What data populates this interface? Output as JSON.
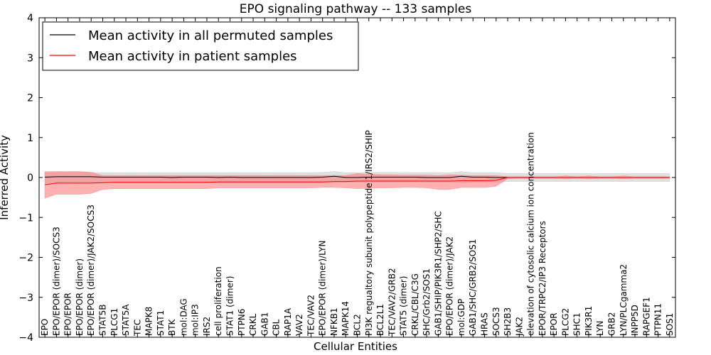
{
  "chart_data": {
    "type": "line",
    "title": "EPO signaling pathway -- 133 samples",
    "xlabel": "Cellular Entities",
    "ylabel": "Inferred Activity",
    "ylim": [
      -4,
      4
    ],
    "yticks": [
      -4,
      -3,
      -2,
      -1,
      0,
      1,
      2,
      3,
      4
    ],
    "ytick_labels": [
      "−4",
      "−3",
      "−2",
      "−1",
      "0",
      "1",
      "2",
      "3",
      "4"
    ],
    "grid": false,
    "legend_position": "top-left",
    "categories": [
      "EPO",
      "EPO/EPOR (dimer)/SOCS3",
      "EPO/EPOR",
      "EPO/EPOR (dimer)",
      "EPO/EPOR (dimer)/JAK2/SOCS3",
      "STAT5B",
      "PLCG1",
      "STAT5A",
      "TEC",
      "MAPK8",
      "STAT1",
      "BTK",
      "mol:DAG",
      "mol:IP3",
      "IRS2",
      "cell proliferation",
      "STAT1 (dimer)",
      "PTPN6",
      "CRKL",
      "GAB1",
      "CBL",
      "RAP1A",
      "VAV2",
      "TEC/VAV2",
      "EPO/EPOR (dimer)/LYN",
      "NFKB1",
      "MAPK14",
      "BCL2",
      "PI3K regualtory subunit polypeptide 1/IRS2/SHIP",
      "BCL2L1",
      "TEC/VAV2/GRB2",
      "STAT5 (dimer)",
      "CRKL/CBL/C3G",
      "SHC/Grb2/SOS1",
      "GAB1/SHIP/PIK3R1/SHP2/SHC",
      "EPO/EPOR (dimer)/JAK2",
      "mol:GDP",
      "GAB1/SHC/GRB2/SOS1",
      "HRAS",
      "SOCS3",
      "SH2B3",
      "JAK2",
      "elevation of cytosolic calcium ion concentration",
      "EPOR/TRPC2/IP3 Receptors",
      "EPOR",
      "PLCG2",
      "SHC1",
      "PIK3R1",
      "LYN",
      "GRB2",
      "LYN/PLCgamma2",
      "INPP5D",
      "RAPGEF1",
      "PTPN11",
      "SOS1"
    ],
    "series": [
      {
        "name": "Mean activity in all permuted samples",
        "color": "#000000",
        "values": [
          0.01,
          0.02,
          0.02,
          0.02,
          0.02,
          0.01,
          0.01,
          0.01,
          0.01,
          0.01,
          0.01,
          0.0,
          0.01,
          0.01,
          0.01,
          0.0,
          0.01,
          0.0,
          0.0,
          0.0,
          0.0,
          0.0,
          0.0,
          0.0,
          0.01,
          0.03,
          0.0,
          0.0,
          0.01,
          0.01,
          0.01,
          0.01,
          0.01,
          0.0,
          0.0,
          0.0,
          0.03,
          0.01,
          0.01,
          0.0,
          0.0,
          0.0,
          0.0,
          0.0,
          0.0,
          0.0,
          0.0,
          0.0,
          0.0,
          0.0,
          0.0,
          0.0,
          0.0,
          0.0,
          0.0
        ],
        "band_lower": [
          -0.13,
          -0.13,
          -0.12,
          -0.12,
          -0.12,
          -0.12,
          -0.12,
          -0.12,
          -0.12,
          -0.12,
          -0.12,
          -0.12,
          -0.12,
          -0.12,
          -0.12,
          -0.12,
          -0.12,
          -0.12,
          -0.12,
          -0.12,
          -0.12,
          -0.12,
          -0.12,
          -0.12,
          -0.12,
          -0.13,
          -0.12,
          -0.12,
          -0.12,
          -0.12,
          -0.12,
          -0.12,
          -0.12,
          -0.12,
          -0.12,
          -0.12,
          -0.13,
          -0.12,
          -0.12,
          -0.12,
          -0.1,
          -0.1,
          -0.1,
          -0.1,
          -0.1,
          -0.1,
          -0.1,
          -0.1,
          -0.1,
          -0.1,
          -0.1,
          -0.1,
          -0.1,
          -0.1,
          -0.1
        ],
        "band_upper": [
          0.12,
          0.13,
          0.13,
          0.13,
          0.13,
          0.12,
          0.12,
          0.12,
          0.12,
          0.12,
          0.12,
          0.12,
          0.12,
          0.12,
          0.12,
          0.12,
          0.12,
          0.12,
          0.12,
          0.12,
          0.12,
          0.12,
          0.12,
          0.12,
          0.13,
          0.15,
          0.12,
          0.12,
          0.13,
          0.13,
          0.13,
          0.12,
          0.12,
          0.12,
          0.12,
          0.12,
          0.15,
          0.12,
          0.12,
          0.12,
          0.1,
          0.1,
          0.1,
          0.1,
          0.1,
          0.1,
          0.1,
          0.1,
          0.1,
          0.1,
          0.1,
          0.1,
          0.1,
          0.1,
          0.1
        ],
        "band_color": "#bbbbbb"
      },
      {
        "name": "Mean activity in patient samples",
        "color": "#ff0000",
        "values": [
          -0.18,
          -0.14,
          -0.14,
          -0.14,
          -0.14,
          -0.13,
          -0.12,
          -0.12,
          -0.12,
          -0.12,
          -0.12,
          -0.12,
          -0.12,
          -0.12,
          -0.12,
          -0.11,
          -0.11,
          -0.11,
          -0.11,
          -0.11,
          -0.11,
          -0.11,
          -0.11,
          -0.11,
          -0.11,
          -0.1,
          -0.1,
          -0.09,
          -0.09,
          -0.09,
          -0.09,
          -0.09,
          -0.09,
          -0.09,
          -0.09,
          -0.09,
          -0.08,
          -0.08,
          -0.08,
          -0.07,
          0.0,
          0.0,
          0.0,
          0.0,
          0.0,
          0.0,
          0.0,
          0.0,
          0.0,
          0.0,
          0.0,
          0.0,
          0.0,
          0.0,
          0.0
        ],
        "band_lower": [
          -0.52,
          -0.42,
          -0.42,
          -0.42,
          -0.4,
          -0.3,
          -0.28,
          -0.28,
          -0.28,
          -0.28,
          -0.28,
          -0.28,
          -0.28,
          -0.28,
          -0.28,
          -0.26,
          -0.26,
          -0.26,
          -0.26,
          -0.26,
          -0.26,
          -0.26,
          -0.26,
          -0.26,
          -0.25,
          -0.25,
          -0.26,
          -0.28,
          -0.27,
          -0.26,
          -0.26,
          -0.25,
          -0.25,
          -0.26,
          -0.3,
          -0.3,
          -0.25,
          -0.25,
          -0.25,
          -0.22,
          -0.03,
          -0.02,
          -0.02,
          -0.02,
          -0.02,
          -0.03,
          -0.02,
          -0.03,
          -0.02,
          -0.02,
          -0.03,
          -0.02,
          -0.02,
          -0.02,
          -0.02
        ],
        "band_upper": [
          0.15,
          0.15,
          0.15,
          0.15,
          0.13,
          0.05,
          0.05,
          0.05,
          0.05,
          0.05,
          0.05,
          0.05,
          0.05,
          0.05,
          0.05,
          0.05,
          0.05,
          0.05,
          0.05,
          0.05,
          0.05,
          0.05,
          0.05,
          0.05,
          0.05,
          0.05,
          0.05,
          0.1,
          0.08,
          0.07,
          0.07,
          0.06,
          0.06,
          0.06,
          0.05,
          0.07,
          0.06,
          0.05,
          0.05,
          0.05,
          0.02,
          0.02,
          0.02,
          0.02,
          0.02,
          0.04,
          0.02,
          0.04,
          0.02,
          0.02,
          0.04,
          0.02,
          0.02,
          0.02,
          0.02
        ],
        "band_color": "#ff7070"
      }
    ]
  }
}
